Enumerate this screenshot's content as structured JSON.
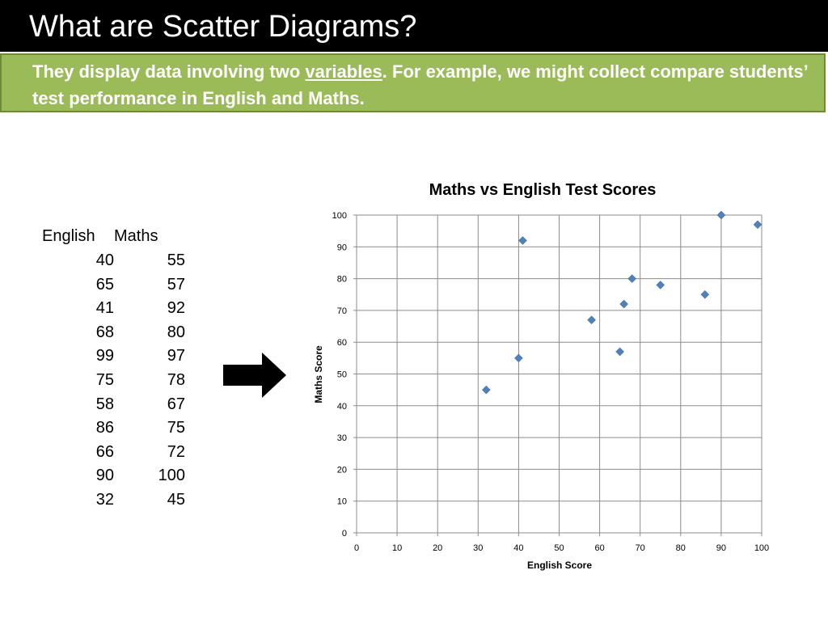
{
  "slide": {
    "title": "What are Scatter Diagrams?",
    "subtitle_before": "They display data involving two ",
    "subtitle_link": "variables",
    "subtitle_after": ". For example, we might collect compare students’ test performance in English and Maths."
  },
  "table": {
    "headers": [
      "English",
      "Maths"
    ],
    "rows": [
      [
        "40",
        "55"
      ],
      [
        "65",
        "57"
      ],
      [
        "41",
        "92"
      ],
      [
        "68",
        "80"
      ],
      [
        "99",
        "97"
      ],
      [
        "75",
        "78"
      ],
      [
        "58",
        "67"
      ],
      [
        "86",
        "75"
      ],
      [
        "66",
        "72"
      ],
      [
        "90",
        "100"
      ],
      [
        "32",
        "45"
      ]
    ]
  },
  "colors": {
    "title_bg": "#000000",
    "subtitle_bg": "#9bbb59",
    "marker": "#4f81bd"
  },
  "arrow_icon": "right-arrow-icon",
  "chart_data": {
    "type": "scatter",
    "title": "Maths vs English Test Scores",
    "xlabel": "English Score",
    "ylabel": "Maths Score",
    "xlim": [
      0,
      100
    ],
    "ylim": [
      0,
      100
    ],
    "xticks": [
      0,
      10,
      20,
      30,
      40,
      50,
      60,
      70,
      80,
      90,
      100
    ],
    "yticks": [
      0,
      10,
      20,
      30,
      40,
      50,
      60,
      70,
      80,
      90,
      100
    ],
    "grid": true,
    "marker": "diamond",
    "points": [
      {
        "x": 40,
        "y": 55
      },
      {
        "x": 65,
        "y": 57
      },
      {
        "x": 41,
        "y": 92
      },
      {
        "x": 68,
        "y": 80
      },
      {
        "x": 99,
        "y": 97
      },
      {
        "x": 75,
        "y": 78
      },
      {
        "x": 58,
        "y": 67
      },
      {
        "x": 86,
        "y": 75
      },
      {
        "x": 66,
        "y": 72
      },
      {
        "x": 90,
        "y": 100
      },
      {
        "x": 32,
        "y": 45
      }
    ]
  }
}
